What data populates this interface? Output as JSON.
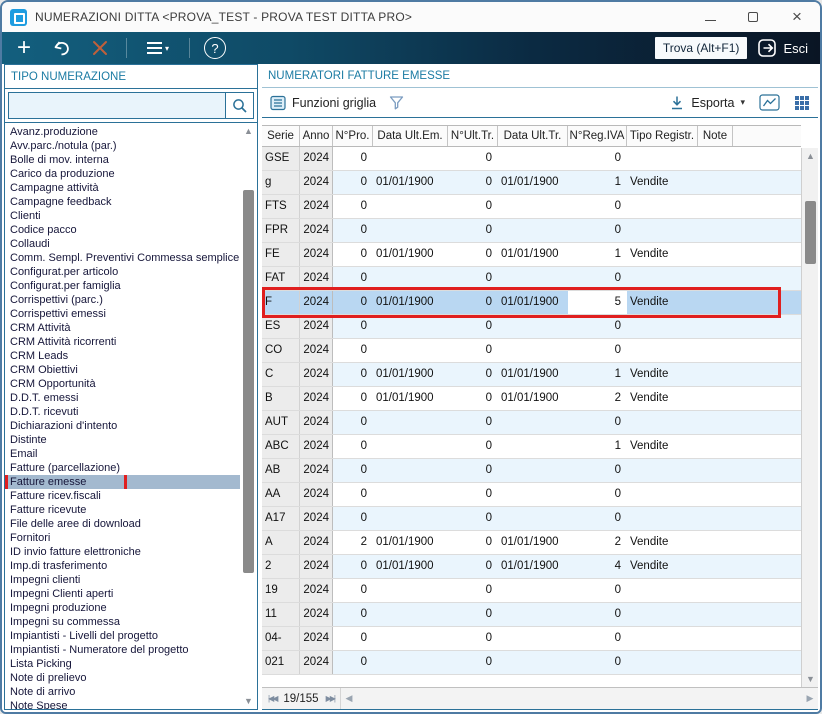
{
  "window": {
    "title": "NUMERAZIONI DITTA <PROVA_TEST - PROVA TEST DITTA PRO>"
  },
  "toolbar": {
    "trova_label": "Trova (Alt+F1)",
    "esci_label": "Esci",
    "icons": [
      "add-icon",
      "undo-icon",
      "delete-x-icon",
      "menu-icon",
      "help-icon",
      "exit-icon"
    ]
  },
  "sidebar": {
    "header": "TIPO NUMERAZIONE",
    "search_value": "",
    "selected": "Fatture emesse",
    "items": [
      "Avanz.produzione",
      "Avv.parc./notula (par.)",
      "Bolle di mov. interna",
      "Carico da produzione",
      "Campagne attività",
      "Campagne feedback",
      "Clienti",
      "Codice pacco",
      "Collaudi",
      "Comm. Sempl. Preventivi Commessa semplice",
      "Configurat.per articolo",
      "Configurat.per famiglia",
      "Corrispettivi (parc.)",
      "Corrispettivi emessi",
      "CRM Attività",
      "CRM Attività ricorrenti",
      "CRM Leads",
      "CRM Obiettivi",
      "CRM Opportunità",
      "D.D.T. emessi",
      "D.D.T. ricevuti",
      "Dichiarazioni d'intento",
      "Distinte",
      "Email",
      "Fatture (parcellazione)",
      "Fatture emesse",
      "Fatture ricev.fiscali",
      "Fatture ricevute",
      "File delle aree di download",
      "Fornitori",
      "ID invio fatture elettroniche",
      "Imp.di trasferimento",
      "Impegni clienti",
      "Impegni Clienti aperti",
      "Impegni produzione",
      "Impegni su commessa",
      "Impiantisti - Livelli del progetto",
      "Impiantisti - Numeratore del progetto",
      "Lista Picking",
      "Note di prelievo",
      "Note di arrivo",
      "Note Spese"
    ]
  },
  "grid": {
    "header": "NUMERATORI FATTURE EMESSE",
    "toolbar": {
      "funzioni_label": "Funzioni griglia",
      "esporta_label": "Esporta"
    },
    "columns": [
      "Serie",
      "Anno",
      "N°Pro.",
      "Data Ult.Em.",
      "N°Ult.Tr.",
      "Data Ult.Tr.",
      "N°Reg.IVA",
      "Tipo Registr.",
      "Note"
    ],
    "selected_serie": "F",
    "editing_cell": {
      "row_serie": "F",
      "column": "N°Reg.IVA",
      "value": "5"
    },
    "rows": [
      {
        "serie": "GSE",
        "anno": "2024",
        "n_pro": "0",
        "data_ult_em": "",
        "n_ult_tr": "0",
        "data_ult_tr": "",
        "n_reg_iva": "0",
        "tipo_registr": "",
        "note": ""
      },
      {
        "serie": "g",
        "anno": "2024",
        "n_pro": "0",
        "data_ult_em": "01/01/1900",
        "n_ult_tr": "0",
        "data_ult_tr": "01/01/1900",
        "n_reg_iva": "1",
        "tipo_registr": "Vendite",
        "note": ""
      },
      {
        "serie": "FTS",
        "anno": "2024",
        "n_pro": "0",
        "data_ult_em": "",
        "n_ult_tr": "0",
        "data_ult_tr": "",
        "n_reg_iva": "0",
        "tipo_registr": "",
        "note": ""
      },
      {
        "serie": "FPR",
        "anno": "2024",
        "n_pro": "0",
        "data_ult_em": "",
        "n_ult_tr": "0",
        "data_ult_tr": "",
        "n_reg_iva": "0",
        "tipo_registr": "",
        "note": ""
      },
      {
        "serie": "FE",
        "anno": "2024",
        "n_pro": "0",
        "data_ult_em": "01/01/1900",
        "n_ult_tr": "0",
        "data_ult_tr": "01/01/1900",
        "n_reg_iva": "1",
        "tipo_registr": "Vendite",
        "note": ""
      },
      {
        "serie": "FAT",
        "anno": "2024",
        "n_pro": "0",
        "data_ult_em": "",
        "n_ult_tr": "0",
        "data_ult_tr": "",
        "n_reg_iva": "0",
        "tipo_registr": "",
        "note": ""
      },
      {
        "serie": "F",
        "anno": "2024",
        "n_pro": "0",
        "data_ult_em": "01/01/1900",
        "n_ult_tr": "0",
        "data_ult_tr": "01/01/1900",
        "n_reg_iva": "5",
        "tipo_registr": "Vendite",
        "note": ""
      },
      {
        "serie": "ES",
        "anno": "2024",
        "n_pro": "0",
        "data_ult_em": "",
        "n_ult_tr": "0",
        "data_ult_tr": "",
        "n_reg_iva": "0",
        "tipo_registr": "",
        "note": ""
      },
      {
        "serie": "CO",
        "anno": "2024",
        "n_pro": "0",
        "data_ult_em": "",
        "n_ult_tr": "0",
        "data_ult_tr": "",
        "n_reg_iva": "0",
        "tipo_registr": "",
        "note": ""
      },
      {
        "serie": "C",
        "anno": "2024",
        "n_pro": "0",
        "data_ult_em": "01/01/1900",
        "n_ult_tr": "0",
        "data_ult_tr": "01/01/1900",
        "n_reg_iva": "1",
        "tipo_registr": "Vendite",
        "note": ""
      },
      {
        "serie": "B",
        "anno": "2024",
        "n_pro": "0",
        "data_ult_em": "01/01/1900",
        "n_ult_tr": "0",
        "data_ult_tr": "01/01/1900",
        "n_reg_iva": "2",
        "tipo_registr": "Vendite",
        "note": ""
      },
      {
        "serie": "AUT",
        "anno": "2024",
        "n_pro": "0",
        "data_ult_em": "",
        "n_ult_tr": "0",
        "data_ult_tr": "",
        "n_reg_iva": "0",
        "tipo_registr": "",
        "note": ""
      },
      {
        "serie": "ABC",
        "anno": "2024",
        "n_pro": "0",
        "data_ult_em": "",
        "n_ult_tr": "0",
        "data_ult_tr": "",
        "n_reg_iva": "1",
        "tipo_registr": "Vendite",
        "note": ""
      },
      {
        "serie": "AB",
        "anno": "2024",
        "n_pro": "0",
        "data_ult_em": "",
        "n_ult_tr": "0",
        "data_ult_tr": "",
        "n_reg_iva": "0",
        "tipo_registr": "",
        "note": ""
      },
      {
        "serie": "AA",
        "anno": "2024",
        "n_pro": "0",
        "data_ult_em": "",
        "n_ult_tr": "0",
        "data_ult_tr": "",
        "n_reg_iva": "0",
        "tipo_registr": "",
        "note": ""
      },
      {
        "serie": "A17",
        "anno": "2024",
        "n_pro": "0",
        "data_ult_em": "",
        "n_ult_tr": "0",
        "data_ult_tr": "",
        "n_reg_iva": "0",
        "tipo_registr": "",
        "note": ""
      },
      {
        "serie": "A",
        "anno": "2024",
        "n_pro": "2",
        "data_ult_em": "01/01/1900",
        "n_ult_tr": "0",
        "data_ult_tr": "01/01/1900",
        "n_reg_iva": "2",
        "tipo_registr": "Vendite",
        "note": ""
      },
      {
        "serie": "2",
        "anno": "2024",
        "n_pro": "0",
        "data_ult_em": "01/01/1900",
        "n_ult_tr": "0",
        "data_ult_tr": "01/01/1900",
        "n_reg_iva": "4",
        "tipo_registr": "Vendite",
        "note": ""
      },
      {
        "serie": "19",
        "anno": "2024",
        "n_pro": "0",
        "data_ult_em": "",
        "n_ult_tr": "0",
        "data_ult_tr": "",
        "n_reg_iva": "0",
        "tipo_registr": "",
        "note": ""
      },
      {
        "serie": "11",
        "anno": "2024",
        "n_pro": "0",
        "data_ult_em": "",
        "n_ult_tr": "0",
        "data_ult_tr": "",
        "n_reg_iva": "0",
        "tipo_registr": "",
        "note": ""
      },
      {
        "serie": "04-",
        "anno": "2024",
        "n_pro": "0",
        "data_ult_em": "",
        "n_ult_tr": "0",
        "data_ult_tr": "",
        "n_reg_iva": "0",
        "tipo_registr": "",
        "note": ""
      },
      {
        "serie": "021",
        "anno": "2024",
        "n_pro": "0",
        "data_ult_em": "",
        "n_ult_tr": "0",
        "data_ult_tr": "",
        "n_reg_iva": "0",
        "tipo_registr": "",
        "note": ""
      }
    ],
    "pager": {
      "position": "19/155"
    }
  },
  "colors": {
    "accent_teal": "#2b7198",
    "toolbar_gradient_start": "#135f7e",
    "toolbar_gradient_end": "#0a1524",
    "annotation_red": "#e01f1f",
    "row_selection_blue": "#b9d7f2",
    "sidebar_selection": "#a3b9cf",
    "row_alt_blue": "#eaf5fd",
    "app_icon_blue": "#1e9ce0"
  }
}
